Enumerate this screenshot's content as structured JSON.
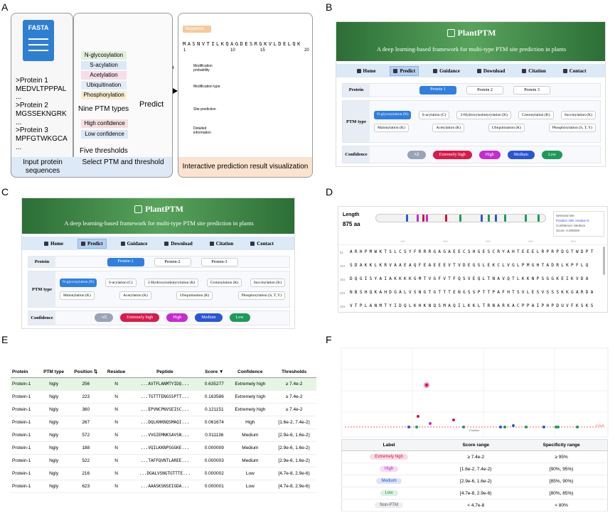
{
  "panel_labels": [
    "A",
    "B",
    "C",
    "D",
    "E",
    "F"
  ],
  "a": {
    "fasta": "FASTA",
    "sequences": [
      ">Protein 1",
      "MEDVLTPPPAL",
      "...",
      ">Protein 2",
      "MGSSEKNGRK",
      "...",
      ">Protein 3",
      "MPFGTWKGCA",
      "..."
    ],
    "ptm_types": [
      "N-glycosylation",
      "S-acylation",
      "Acetylation",
      "Ubiquitination",
      "Phosphorylation"
    ],
    "ptm_caption": "Nine PTM types",
    "thresholds": [
      "High confidence",
      "Low confidence"
    ],
    "threshold_caption": "Five thresholds",
    "input_caption": "Input protein sequences",
    "select_caption": "Select PTM and threshold",
    "predict": "Predict",
    "viz": {
      "sequence_tag": "Sequence",
      "sequence": "MASNVTILKQAGDESRGKVLDELQK",
      "ruler": [
        "1",
        "10",
        "15",
        "20"
      ],
      "rows": [
        "Modification probability",
        "Modification type",
        "Site prediction",
        "Detailed information"
      ],
      "caption": "Interactive prediction result visualization"
    }
  },
  "app": {
    "title": "PlantPTM",
    "subtitle": "A deep learning-based framework for multi-type PTM site prediction in plants",
    "nav": [
      "Home",
      "Predict",
      "Guidance",
      "Download",
      "Citation",
      "Contact"
    ],
    "row_labels": [
      "Protein",
      "PTM type",
      "Confidence"
    ],
    "ptm_types": [
      "N-glycosylation (N)",
      "S-acylation (C)",
      "2-Hydroxyisobutyrylation (K)",
      "Crotonylation (K)",
      "Succinylation (K)",
      "Malonylation (K)",
      "Acetylation (K)",
      "Ubiquitination (K)",
      "Phosphorylation (S, T, Y)"
    ],
    "confidence": [
      "All",
      "Extremely high",
      "High",
      "Medium",
      "Low"
    ]
  },
  "b": {
    "proteins": [
      "Protein 1",
      "Protein 2",
      "Protein 3"
    ]
  },
  "c": {
    "proteins": [
      "Protein-1",
      "Protein-2",
      "Protein-3"
    ]
  },
  "d": {
    "length_label": "Length",
    "length": "875 aa",
    "ruler": [
      "100",
      "200",
      "300",
      "400",
      "500"
    ],
    "selected": [
      "Selected site",
      "Position 188, residue N",
      "Confidence: Medium",
      "Score: 0.000009"
    ],
    "row_numbers": [
      "51",
      "101",
      "151",
      "201",
      "251"
    ],
    "rows": [
      "ARHPMWKTSLCSYFRRRGAGAEECSHGESCRYAHTEEELRPRPDGTWDPT",
      "SDAKKLKRVAAEAQFEAEEEVTVDEGSLEKCLVGLPMGHTADRLKPFLQ",
      "DQGISYAIAKKKKGMTVGFVTFQSVEQLTNAVQTLKKNPSGGKEIKVDA",
      "NBSHQKAHDGALVSNGTGTTTENGSSPTTPAFHTSVLESVSSSKKGARDA",
      "VTPLANMTYIDQLKHKNQSMAQILKKLTRNARKACPPAIPHPDUVFKSKS"
    ]
  },
  "e": {
    "headers": [
      "Protein",
      "PTM type",
      "Position ⇅",
      "Residue",
      "Peptide",
      "Score ▼",
      "Confidence",
      "Thresholds"
    ],
    "rows": [
      [
        "Protein-1",
        "Ngly",
        "256",
        "N",
        "...AVTFLANMTYIDQ...",
        "0.635277",
        "Extremely high",
        "≥ 7.4e-2"
      ],
      [
        "Protein-1",
        "Ngly",
        "223",
        "N",
        "...TGTTTENGSSPTT...",
        "0.163586",
        "Extremely high",
        "≥ 7.4e-2"
      ],
      [
        "Protein-1",
        "Ngly",
        "360",
        "N",
        "...EPVNCPNVSEISC...",
        "0.121151",
        "Extremely high",
        "≥ 7.4e-2"
      ],
      [
        "Protein-1",
        "Ngly",
        "267",
        "N",
        "...DQLKHKNQSMAQI...",
        "0.061674",
        "High",
        "[1.6e-2, 7.4e-2)"
      ],
      [
        "Protein-1",
        "Ngly",
        "572",
        "N",
        "...VVGIEMNKSAVSN...",
        "0.011136",
        "Medium",
        "[2.9e-6, 1.6e-2)"
      ],
      [
        "Protein-1",
        "Ngly",
        "188",
        "N",
        "...VQILKKNPSGGKE...",
        "0.000009",
        "Medium",
        "[2.9e-6, 1.6e-2)"
      ],
      [
        "Protein-1",
        "Ngly",
        "522",
        "N",
        "...TAFFQVNTLAREE...",
        "0.000003",
        "Medium",
        "[2.9e-6, 1.6e-2)"
      ],
      [
        "Protein-1",
        "Ngly",
        "216",
        "N",
        "...DGALVSNGTGTTTE...",
        "0.000002",
        "Low",
        "[4.7e-8, 2.9e-6)"
      ],
      [
        "Protein-1",
        "Ngly",
        "623",
        "N",
        "...AAASKSNSEIGDA...",
        "0.000001",
        "Low",
        "[4.7e-8, 2.9e-6)"
      ]
    ]
  },
  "f": {
    "axis_label": "Position",
    "threshold_label": "4.7e-8",
    "headers": [
      "Label",
      "Score range",
      "Specificity range"
    ],
    "rows": [
      [
        "Extremely high",
        "≥ 7.4e-2",
        "≥ 95%"
      ],
      [
        "High",
        "[1.6e-2, 7.4e-2)",
        "[90%, 95%)"
      ],
      [
        "Medium",
        "[2.9e-6, 1.6e-2)",
        "[85%, 90%)"
      ],
      [
        "Low",
        "[4.7e-8, 2.9e-6)",
        "[80%, 85%)"
      ],
      [
        "Non-PTM",
        "< 4.7e-8",
        "< 80%"
      ]
    ]
  }
}
